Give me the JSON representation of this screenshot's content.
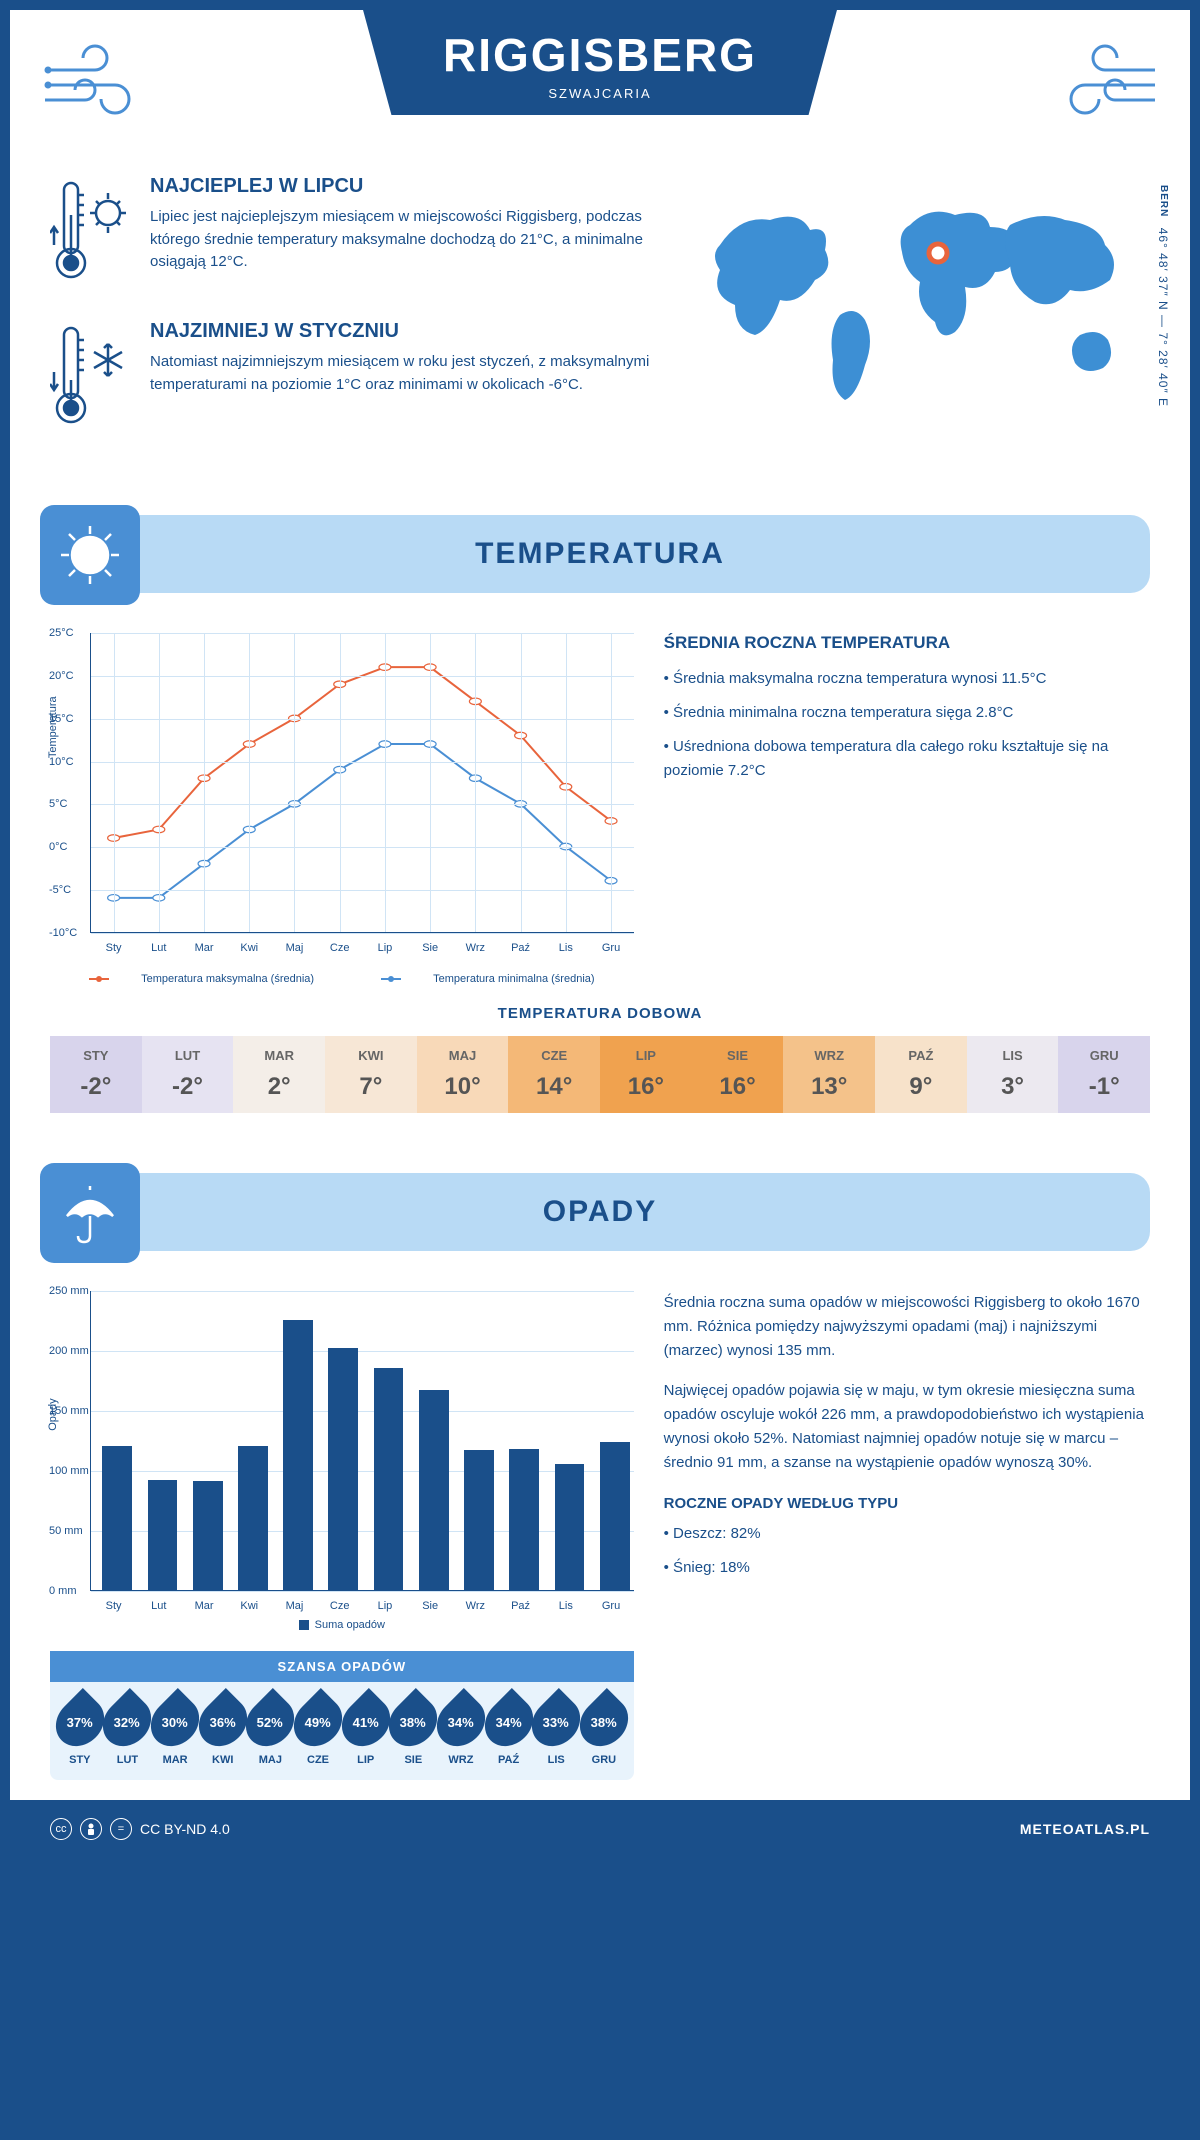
{
  "header": {
    "title": "RIGGISBERG",
    "subtitle": "SZWAJCARIA"
  },
  "coords": {
    "city": "BERN",
    "text": "46° 48′ 37″ N — 7° 28′ 40″ E"
  },
  "hot": {
    "title": "NAJCIEPLEJ W LIPCU",
    "text": "Lipiec jest najcieplejszym miesiącem w miejscowości Riggisberg, podczas którego średnie temperatury maksymalne dochodzą do 21°C, a minimalne osiągają 12°C."
  },
  "cold": {
    "title": "NAJZIMNIEJ W STYCZNIU",
    "text": "Natomiast najzimniejszym miesiącem w roku jest styczeń, z maksymalnymi temperaturami na poziomie 1°C oraz minimami w okolicach -6°C."
  },
  "temp_section": {
    "title": "TEMPERATURA"
  },
  "temp_chart": {
    "type": "line",
    "months": [
      "Sty",
      "Lut",
      "Mar",
      "Kwi",
      "Maj",
      "Cze",
      "Lip",
      "Sie",
      "Wrz",
      "Paź",
      "Lis",
      "Gru"
    ],
    "max_series": [
      1,
      2,
      8,
      12,
      15,
      19,
      21,
      21,
      17,
      13,
      7,
      3
    ],
    "min_series": [
      -6,
      -6,
      -2,
      2,
      5,
      9,
      12,
      12,
      8,
      5,
      0,
      -4
    ],
    "max_color": "#e8643c",
    "min_color": "#4a8fd4",
    "y_min": -10,
    "y_max": 25,
    "y_step": 5,
    "y_label": "Temperatura",
    "y_suffix": "°C",
    "grid_color": "#d0e4f5",
    "line_width": 2,
    "marker_size": 4,
    "legend_max": "Temperatura maksymalna (średnia)",
    "legend_min": "Temperatura minimalna (średnia)"
  },
  "temp_desc": {
    "title": "ŚREDNIA ROCZNA TEMPERATURA",
    "items": [
      "• Średnia maksymalna roczna temperatura wynosi 11.5°C",
      "• Średnia minimalna roczna temperatura sięga 2.8°C",
      "• Uśredniona dobowa temperatura dla całego roku kształtuje się na poziomie 7.2°C"
    ]
  },
  "daily": {
    "title": "TEMPERATURA DOBOWA",
    "months": [
      "STY",
      "LUT",
      "MAR",
      "KWI",
      "MAJ",
      "CZE",
      "LIP",
      "SIE",
      "WRZ",
      "PAŹ",
      "LIS",
      "GRU"
    ],
    "values": [
      "-2°",
      "-2°",
      "2°",
      "7°",
      "10°",
      "14°",
      "16°",
      "16°",
      "13°",
      "9°",
      "3°",
      "-1°"
    ],
    "colors": [
      "#d8d4ec",
      "#e6e3f2",
      "#f4eee8",
      "#f7e7d6",
      "#f8d9b8",
      "#f4b877",
      "#f0a24f",
      "#f0a24f",
      "#f4c28a",
      "#f7e2ca",
      "#ece9f0",
      "#d8d4ec"
    ]
  },
  "precip_section": {
    "title": "OPADY"
  },
  "precip_chart": {
    "type": "bar",
    "months": [
      "Sty",
      "Lut",
      "Mar",
      "Kwi",
      "Maj",
      "Cze",
      "Lip",
      "Sie",
      "Wrz",
      "Paź",
      "Lis",
      "Gru"
    ],
    "values": [
      120,
      92,
      91,
      120,
      226,
      202,
      186,
      167,
      117,
      118,
      105,
      124
    ],
    "y_min": 0,
    "y_max": 250,
    "y_step": 50,
    "y_label": "Opady",
    "y_suffix": " mm",
    "bar_color": "#1a4f8a",
    "legend": "Suma opadów"
  },
  "precip_text": {
    "p1": "Średnia roczna suma opadów w miejscowości Riggisberg to około 1670 mm. Różnica pomiędzy najwyższymi opadami (maj) i najniższymi (marzec) wynosi 135 mm.",
    "p2": "Najwięcej opadów pojawia się w maju, w tym okresie miesięczna suma opadów oscyluje wokół 226 mm, a prawdopodobieństwo ich wystąpienia wynosi około 52%. Natomiast najmniej opadów notuje się w marcu – średnio 91 mm, a szanse na wystąpienie opadów wynoszą 30%.",
    "type_title": "ROCZNE OPADY WEDŁUG TYPU",
    "type1": "• Deszcz: 82%",
    "type2": "• Śnieg: 18%"
  },
  "chance": {
    "title": "SZANSA OPADÓW",
    "months": [
      "STY",
      "LUT",
      "MAR",
      "KWI",
      "MAJ",
      "CZE",
      "LIP",
      "SIE",
      "WRZ",
      "PAŹ",
      "LIS",
      "GRU"
    ],
    "values": [
      "37%",
      "32%",
      "30%",
      "36%",
      "52%",
      "49%",
      "41%",
      "38%",
      "34%",
      "34%",
      "33%",
      "38%"
    ]
  },
  "footer": {
    "license": "CC BY-ND 4.0",
    "brand": "METEOATLAS.PL"
  }
}
